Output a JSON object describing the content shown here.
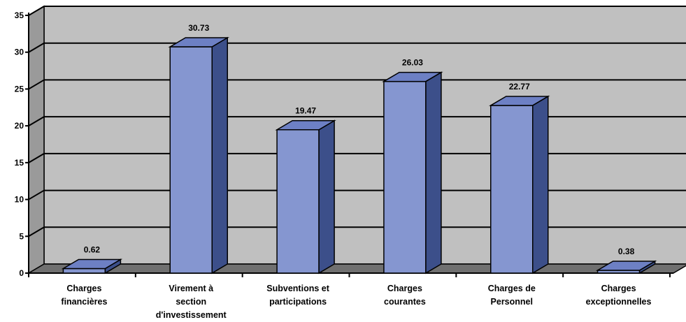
{
  "chart_data": {
    "type": "bar",
    "title": "",
    "xlabel": "",
    "ylabel": "",
    "ylim": [
      0,
      35
    ],
    "yticks": [
      0,
      5,
      10,
      15,
      20,
      25,
      30,
      35
    ],
    "grid": true,
    "style": "3d",
    "colors": {
      "bar_front": "#8596d0",
      "bar_side": "#3c4f8a",
      "bar_top": "#6d80c4",
      "wall": "#c0c0c0",
      "floor": "#707070",
      "grid": "#000000"
    },
    "categories": [
      [
        "Charges",
        "financières"
      ],
      [
        "Virement à",
        "section",
        "d'investissement"
      ],
      [
        "Subventions et",
        "participations"
      ],
      [
        "Charges",
        "courantes"
      ],
      [
        "Charges de",
        "Personnel"
      ],
      [
        "Charges",
        "exceptionnelles"
      ]
    ],
    "values": [
      0.62,
      30.73,
      19.47,
      26.03,
      22.77,
      0.38
    ],
    "data_labels": [
      "0.62",
      "30.73",
      "19.47",
      "26.03",
      "22.77",
      "0.38"
    ]
  }
}
